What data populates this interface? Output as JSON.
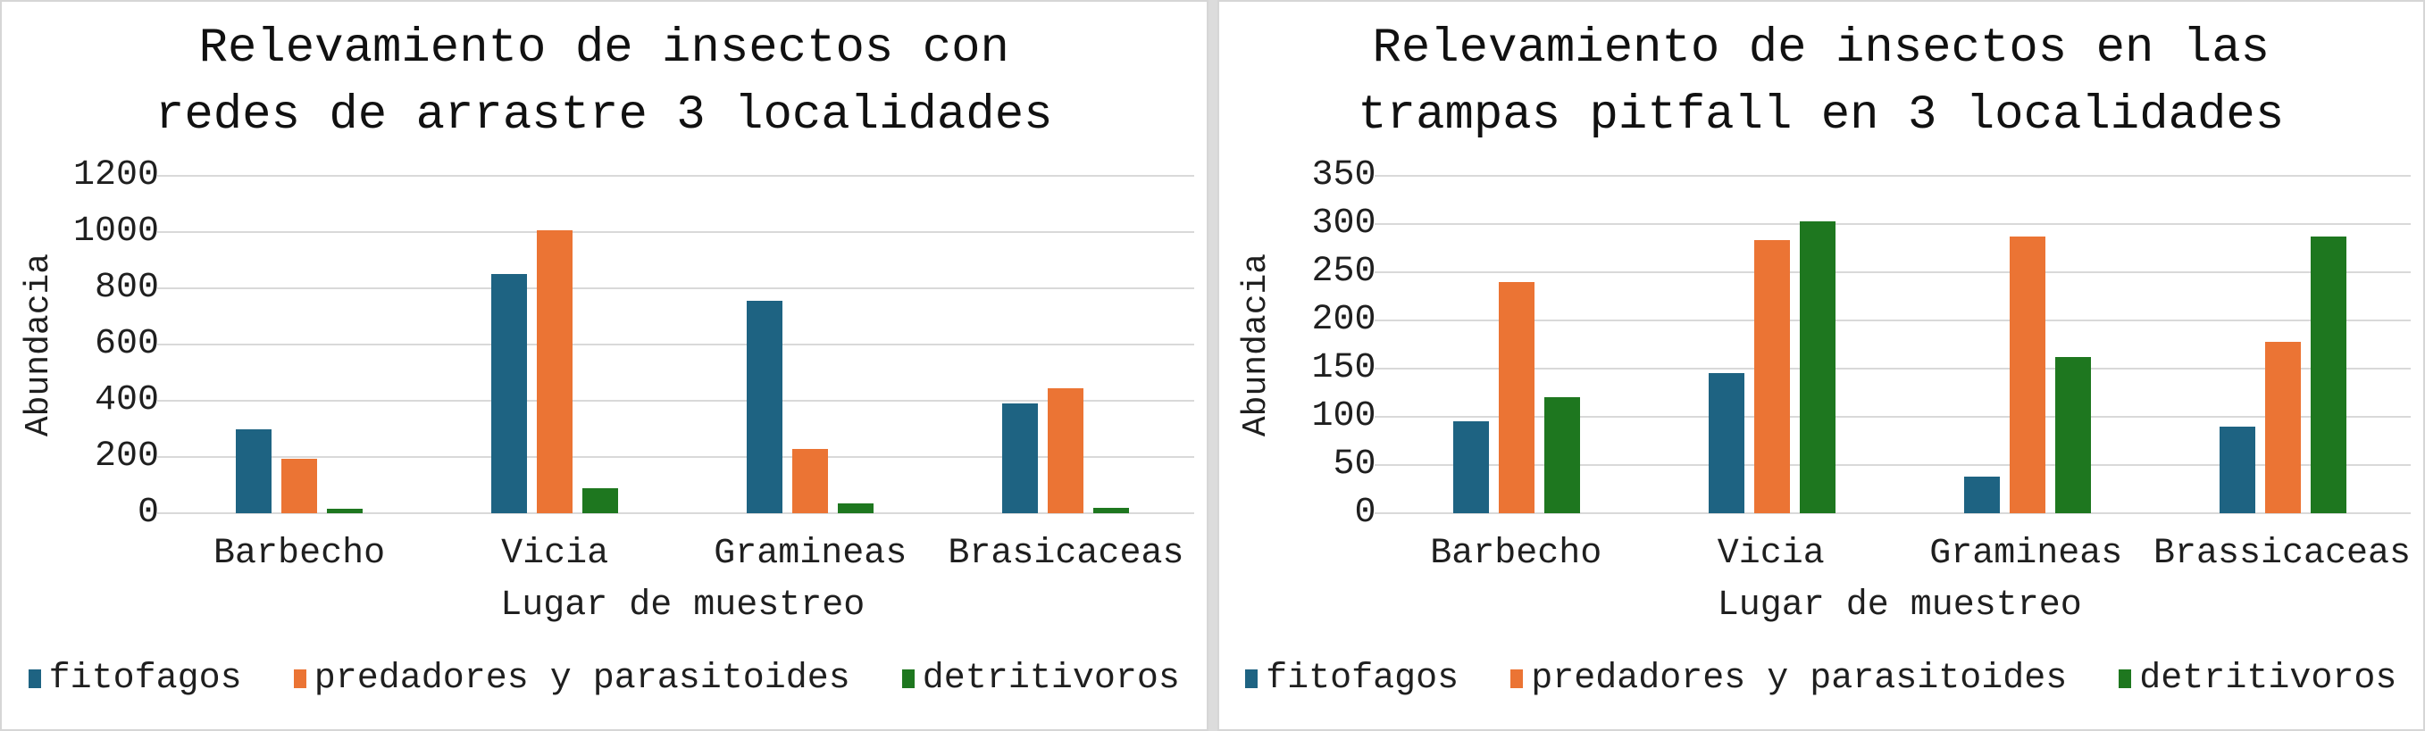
{
  "page": {
    "background_color": "#dcdcdc",
    "panel_background": "#ffffff",
    "gridline_color": "#d9d9d9",
    "text_color": "#1f1f1f"
  },
  "chart_data": [
    {
      "type": "bar",
      "title": "Relevamiento de insectos con\nredes de arrastre 3 localidades",
      "ylabel": "Abundacia",
      "xlabel": "Lugar de muestreo",
      "categories": [
        "Barbecho",
        "Vicia",
        "Gramineas",
        "Brasicaceas"
      ],
      "series": [
        {
          "name": "fitofagos",
          "color": "#1e6382",
          "values": [
            300,
            850,
            755,
            390
          ]
        },
        {
          "name": "predadores y parasitoides",
          "color": "#eb7434",
          "values": [
            195,
            1005,
            230,
            445
          ]
        },
        {
          "name": "detritivoros",
          "color": "#1e771f",
          "values": [
            15,
            90,
            35,
            20
          ]
        }
      ],
      "ylim": [
        0,
        1200
      ],
      "ytick_step": 200,
      "grid": true,
      "legend_position": "bottom"
    },
    {
      "type": "bar",
      "title": "Relevamiento de insectos en las\ntrampas pitfall en 3 localidades",
      "ylabel": "Abundacia",
      "xlabel": "Lugar de muestreo",
      "categories": [
        "Barbecho",
        "Vicia",
        "Gramineas",
        "Brassicaceas"
      ],
      "series": [
        {
          "name": "fitofagos",
          "color": "#1e6382",
          "values": [
            95,
            145,
            38,
            90
          ]
        },
        {
          "name": "predadores y parasitoides",
          "color": "#eb7434",
          "values": [
            240,
            283,
            287,
            178
          ]
        },
        {
          "name": "detritivoros",
          "color": "#1e771f",
          "values": [
            120,
            303,
            162,
            287
          ]
        }
      ],
      "ylim": [
        0,
        350
      ],
      "ytick_step": 50,
      "grid": true,
      "legend_position": "bottom"
    }
  ]
}
